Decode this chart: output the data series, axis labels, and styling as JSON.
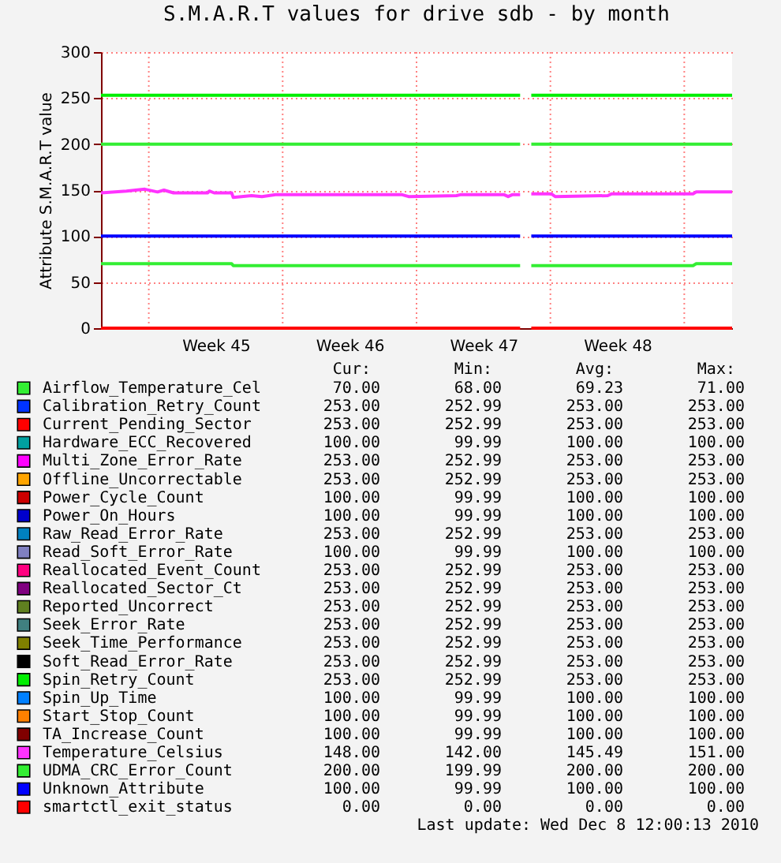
{
  "chart_data": {
    "type": "line",
    "title": "S.M.A.R.T values for drive sdb - by month",
    "ylabel": "Attribute S.M.A.R.T value",
    "xlim": [
      "2010-11-05T12:00",
      "2010-12-08T12:00"
    ],
    "xticks": [
      {
        "value": "2010-11-08T00:00",
        "label": null
      },
      {
        "value": "2010-11-11T12:00",
        "label": "Week 45"
      },
      {
        "value": "2010-11-15T00:00",
        "label": null
      },
      {
        "value": "2010-11-18T12:00",
        "label": "Week 46"
      },
      {
        "value": "2010-11-22T00:00",
        "label": null
      },
      {
        "value": "2010-11-25T12:00",
        "label": "Week 47"
      },
      {
        "value": "2010-11-29T00:00",
        "label": null
      },
      {
        "value": "2010-12-02T12:00",
        "label": "Week 48"
      },
      {
        "value": "2010-12-06T00:00",
        "label": null
      }
    ],
    "ylim": [
      0,
      300
    ],
    "yticks": [
      0,
      50,
      100,
      150,
      200,
      250,
      300
    ],
    "grid": true,
    "legend": "bottom",
    "x": [
      "2010-11-05T12:00",
      "2010-11-27T10:00",
      "2010-11-27T12:00",
      "2010-11-28T00:00",
      "2010-12-08T12:00"
    ],
    "series": [
      {
        "name": "Airflow_Temperature_Cel",
        "color": "#33ee33",
        "x": [
          "2010-11-05T12:00",
          "2010-11-12T08:00",
          "2010-11-12T10:00",
          "2010-11-27T10:00",
          "2010-11-27T12:00",
          "2010-11-28T00:00",
          "2010-12-06T11:00",
          "2010-12-06T15:00",
          "2010-12-08T12:00"
        ],
        "values": [
          70,
          70,
          68,
          68,
          null,
          68,
          68,
          70,
          70
        ]
      },
      {
        "name": "Calibration_Retry_Count",
        "color": "#0033ff",
        "values": [
          null,
          null,
          null,
          null,
          null
        ]
      },
      {
        "name": "Current_Pending_Sector",
        "color": "#ff0000",
        "values": [
          null,
          null,
          null,
          null,
          null
        ]
      },
      {
        "name": "Hardware_ECC_Recovered",
        "color": "#00a0a0",
        "values": [
          null,
          null,
          null,
          null,
          null
        ]
      },
      {
        "name": "Multi_Zone_Error_Rate",
        "color": "#ff00ff",
        "values": [
          null,
          null,
          null,
          null,
          null
        ]
      },
      {
        "name": "Offline_Uncorrectable",
        "color": "#ffa500",
        "values": [
          null,
          null,
          null,
          null,
          null
        ]
      },
      {
        "name": "Power_Cycle_Count",
        "color": "#cc0000",
        "values": [
          null,
          null,
          null,
          null,
          null
        ]
      },
      {
        "name": "Power_On_Hours",
        "color": "#0000cc",
        "values": [
          null,
          null,
          null,
          null,
          null
        ]
      },
      {
        "name": "Raw_Read_Error_Rate",
        "color": "#0080c0",
        "values": [
          null,
          null,
          null,
          null,
          null
        ]
      },
      {
        "name": "Read_Soft_Error_Rate",
        "color": "#8080c0",
        "values": [
          null,
          null,
          null,
          null,
          null
        ]
      },
      {
        "name": "Reallocated_Event_Count",
        "color": "#ff0080",
        "values": [
          null,
          null,
          null,
          null,
          null
        ]
      },
      {
        "name": "Reallocated_Sector_Ct",
        "color": "#800080",
        "values": [
          null,
          null,
          null,
          null,
          null
        ]
      },
      {
        "name": "Reported_Uncorrect",
        "color": "#608020",
        "values": [
          null,
          null,
          null,
          null,
          null
        ]
      },
      {
        "name": "Seek_Error_Rate",
        "color": "#408080",
        "values": [
          null,
          null,
          null,
          null,
          null
        ]
      },
      {
        "name": "Seek_Time_Performance",
        "color": "#808000",
        "values": [
          null,
          null,
          null,
          null,
          null
        ]
      },
      {
        "name": "Soft_Read_Error_Rate",
        "color": "#000000",
        "values": [
          null,
          null,
          null,
          null,
          null
        ]
      },
      {
        "name": "Spin_Retry_Count",
        "color": "#00ee00",
        "values": [
          253,
          253,
          null,
          253,
          253
        ]
      },
      {
        "name": "Spin_Up_Time",
        "color": "#0080ff",
        "values": [
          null,
          null,
          null,
          null,
          null
        ]
      },
      {
        "name": "Start_Stop_Count",
        "color": "#ff8000",
        "values": [
          null,
          null,
          null,
          null,
          null
        ]
      },
      {
        "name": "TA_Increase_Count",
        "color": "#800000",
        "values": [
          null,
          null,
          null,
          null,
          null
        ]
      },
      {
        "name": "Temperature_Celsius",
        "color": "#ff33ff",
        "x": [
          "2010-11-05T12:00",
          "2010-11-06T20:00",
          "2010-11-07T19:00",
          "2010-11-08T11:00",
          "2010-11-08T19:00",
          "2010-11-09T07:00",
          "2010-11-11T02:00",
          "2010-11-11T04:00",
          "2010-11-11T10:00",
          "2010-11-12T08:00",
          "2010-11-12T10:00",
          "2010-11-13T09:00",
          "2010-11-13T22:00",
          "2010-11-14T15:00",
          "2010-11-21T06:00",
          "2010-11-21T14:00",
          "2010-11-24T02:00",
          "2010-11-24T07:00",
          "2010-11-26T14:00",
          "2010-11-26T19:00",
          "2010-11-27T00:00",
          "2010-11-27T10:00",
          "2010-11-27T12:00",
          "2010-11-28T00:00",
          "2010-11-29T01:00",
          "2010-11-29T06:00",
          "2010-12-02T00:00",
          "2010-12-02T05:00",
          "2010-12-06T11:00",
          "2010-12-06T15:00",
          "2010-12-08T12:00"
        ],
        "values": [
          147,
          149,
          151,
          148,
          150,
          147,
          147,
          149,
          147,
          147,
          142,
          144,
          143,
          145,
          145,
          143,
          144,
          145,
          145,
          143,
          145,
          145,
          null,
          146,
          146,
          143,
          144,
          146,
          146,
          148,
          148
        ]
      },
      {
        "name": "UDMA_CRC_Error_Count",
        "color": "#33ee33",
        "values": [
          200,
          200,
          null,
          200,
          200
        ]
      },
      {
        "name": "Unknown_Attribute",
        "color": "#0000ff",
        "values": [
          100,
          100,
          null,
          100,
          100
        ]
      },
      {
        "name": "smartctl_exit_status",
        "color": "#ff0000",
        "values": [
          0,
          0,
          null,
          0,
          0
        ]
      }
    ],
    "annotations": [
      "Cur:",
      "Min:",
      "Avg:",
      "Max:",
      "70.00",
      "68.00",
      "69.23",
      "71.00",
      "253.00",
      "252.99",
      "253.00",
      "253.00",
      "253.00",
      "252.99",
      "253.00",
      "253.00",
      "100.00",
      "99.99",
      "100.00",
      "100.00",
      "253.00",
      "252.99",
      "253.00",
      "253.00",
      "253.00",
      "252.99",
      "253.00",
      "253.00",
      "100.00",
      "99.99",
      "100.00",
      "100.00",
      "100.00",
      "99.99",
      "100.00",
      "100.00",
      "253.00",
      "252.99",
      "253.00",
      "253.00",
      "100.00",
      "99.99",
      "100.00",
      "100.00",
      "253.00",
      "252.99",
      "253.00",
      "253.00",
      "253.00",
      "252.99",
      "253.00",
      "253.00",
      "253.00",
      "252.99",
      "253.00",
      "253.00",
      "253.00",
      "252.99",
      "253.00",
      "253.00",
      "253.00",
      "252.99",
      "253.00",
      "253.00",
      "253.00",
      "252.99",
      "253.00",
      "253.00",
      "253.00",
      "252.99",
      "253.00",
      "253.00",
      "100.00",
      "99.99",
      "100.00",
      "100.00",
      "100.00",
      "99.99",
      "100.00",
      "100.00",
      "100.00",
      "99.99",
      "100.00",
      "100.00",
      "148.00",
      "142.00",
      "145.49",
      "151.00",
      "200.00",
      "199.99",
      "200.00",
      "200.00",
      "100.00",
      "99.99",
      "100.00",
      "100.00",
      "0.00",
      "0.00",
      "0.00",
      "0.00",
      "Last update: Wed Dec  8 12:00:13 2010"
    ]
  }
}
